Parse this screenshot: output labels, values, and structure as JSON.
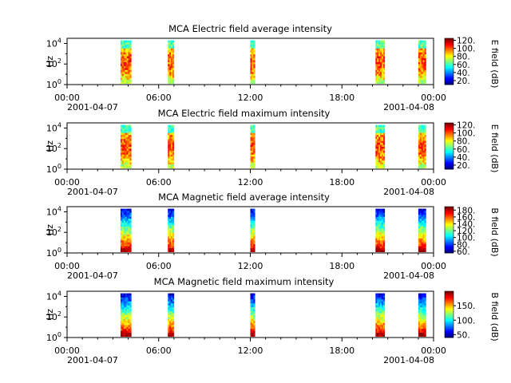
{
  "chart_data": [
    {
      "type": "heatmap",
      "title": "MCA  Electric field average intensity",
      "ylabel": "Hz",
      "colorbar_label": "E field (dB)",
      "colorbar_ticks": [
        "20.",
        "40.",
        "60.",
        "80.",
        "100.",
        "120."
      ],
      "colorbar_range": [
        10,
        125
      ],
      "x_ticks": [
        "00:00",
        "06:00",
        "12:00",
        "18:00",
        "00:00"
      ],
      "x_start_date": "2001-04-07",
      "x_end_date": "2001-04-08",
      "y_ticks": [
        "10^0",
        "10^2",
        "10^4"
      ],
      "y_log_range": [
        0,
        4.5
      ],
      "xlim_hours": [
        0,
        24
      ],
      "data_segments_hours": [
        [
          3.5,
          4.2
        ],
        [
          6.6,
          7.0
        ],
        [
          12.0,
          12.3
        ],
        [
          20.2,
          20.8
        ],
        [
          23.0,
          23.5
        ]
      ],
      "intensity_profile": "mid"
    },
    {
      "type": "heatmap",
      "title": "MCA  Electric field maximum intensity",
      "ylabel": "Hz",
      "colorbar_label": "E field (dB)",
      "colorbar_ticks": [
        "20.",
        "40.",
        "60.",
        "80.",
        "100.",
        "120."
      ],
      "colorbar_range": [
        10,
        125
      ],
      "x_ticks": [
        "00:00",
        "06:00",
        "12:00",
        "18:00",
        "00:00"
      ],
      "x_start_date": "2001-04-07",
      "x_end_date": "2001-04-08",
      "y_ticks": [
        "10^0",
        "10^2",
        "10^4"
      ],
      "y_log_range": [
        0,
        4.5
      ],
      "xlim_hours": [
        0,
        24
      ],
      "data_segments_hours": [
        [
          3.5,
          4.2
        ],
        [
          6.6,
          7.0
        ],
        [
          12.0,
          12.3
        ],
        [
          20.2,
          20.8
        ],
        [
          23.0,
          23.5
        ]
      ],
      "intensity_profile": "mid"
    },
    {
      "type": "heatmap",
      "title": "MCA  Magnetic field average intensity",
      "ylabel": "Hz",
      "colorbar_label": "B field (dB)",
      "colorbar_ticks": [
        "60.",
        "80.",
        "100.",
        "120.",
        "140.",
        "160.",
        "180."
      ],
      "colorbar_range": [
        55,
        190
      ],
      "x_ticks": [
        "00:00",
        "06:00",
        "12:00",
        "18:00",
        "00:00"
      ],
      "x_start_date": "2001-04-07",
      "x_end_date": "2001-04-08",
      "y_ticks": [
        "10^0",
        "10^2",
        "10^4"
      ],
      "y_log_range": [
        0,
        4.5
      ],
      "xlim_hours": [
        0,
        24
      ],
      "data_segments_hours": [
        [
          3.5,
          4.2
        ],
        [
          6.6,
          7.0
        ],
        [
          12.0,
          12.3
        ],
        [
          20.2,
          20.8
        ],
        [
          23.0,
          23.5
        ]
      ],
      "intensity_profile": "gradient"
    },
    {
      "type": "heatmap",
      "title": "MCA  Magnetic field maximum intensity",
      "ylabel": "Hz",
      "colorbar_label": "B field (dB)",
      "colorbar_ticks": [
        "50.",
        "100.",
        "150."
      ],
      "colorbar_range": [
        40,
        200
      ],
      "x_ticks": [
        "00:00",
        "06:00",
        "12:00",
        "18:00",
        "00:00"
      ],
      "x_start_date": "2001-04-07",
      "x_end_date": "2001-04-08",
      "y_ticks": [
        "10^0",
        "10^2",
        "10^4"
      ],
      "y_log_range": [
        0,
        4.5
      ],
      "xlim_hours": [
        0,
        24
      ],
      "data_segments_hours": [
        [
          3.5,
          4.2
        ],
        [
          6.6,
          7.0
        ],
        [
          12.0,
          12.3
        ],
        [
          20.2,
          20.8
        ],
        [
          23.0,
          23.5
        ]
      ],
      "intensity_profile": "gradient"
    }
  ]
}
